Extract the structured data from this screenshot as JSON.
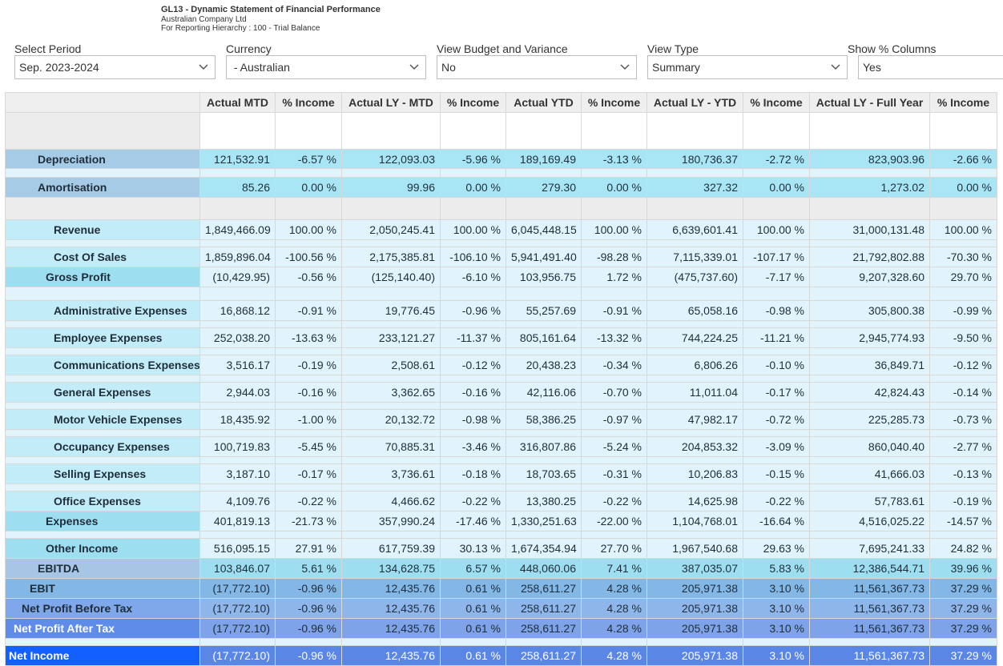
{
  "header": {
    "title": "GL13 - Dynamic Statement of Financial Performance",
    "company": "Australian Company Ltd",
    "hierarchy": "For Reporting Hierarchy : 100 - Trial Balance"
  },
  "filters": [
    {
      "label": "Select Period",
      "value": "Sep. 2023-2024"
    },
    {
      "label": "Currency",
      "value": " - Australian"
    },
    {
      "label": "View Budget and Variance",
      "value": "No"
    },
    {
      "label": "View Type",
      "value": "Summary"
    },
    {
      "label": "Show % Columns",
      "value": "Yes"
    }
  ],
  "columns": [
    "",
    "Actual MTD",
    "% Income",
    "Actual LY - MTD",
    "% Income",
    "Actual YTD",
    "% Income",
    "Actual LY - YTD",
    "% Income",
    "Actual LY - Full Year",
    "% Income"
  ],
  "colors": {
    "label_blue": "#a6cbe6",
    "cell_cyan": "#a9e6f5",
    "light_row": "#e2f4fb",
    "mid_row": "#c2ecf8",
    "gross_row": "#9ddff1",
    "ebitda_label": "#a7c6e6",
    "ebit_bg": "#82b7e6",
    "npbt_bg": "#7fa8ea",
    "npat_bg": "#5e8ce8",
    "net_income_label": "#1460ff",
    "net_income_cells": "#5a86e6"
  },
  "rows": [
    {
      "type": "blank",
      "style": "blank",
      "h": 46
    },
    {
      "type": "data",
      "label": "Depreciation",
      "indent": 40,
      "style": "depr",
      "h": 24,
      "values": [
        "121,532.91",
        "-6.57 %",
        "122,093.03",
        "-5.96 %",
        "189,169.49",
        "-3.13 %",
        "180,736.37",
        "-2.72 %",
        "823,903.96",
        "-2.66 %"
      ]
    },
    {
      "type": "blank",
      "style": "thin",
      "h": 11
    },
    {
      "type": "data",
      "label": "Amortisation",
      "indent": 40,
      "style": "depr",
      "h": 25,
      "values": [
        "85.26",
        "0.00 %",
        "99.96",
        "0.00 %",
        "279.30",
        "0.00 %",
        "327.32",
        "0.00 %",
        "1,273.02",
        "0.00 %"
      ]
    },
    {
      "type": "blank",
      "style": "grey",
      "h": 28
    },
    {
      "type": "data",
      "label": "Revenue",
      "indent": 60,
      "style": "light",
      "h": 25,
      "values": [
        "1,849,466.09",
        "100.00 %",
        "2,050,245.41",
        "100.00 %",
        "6,045,448.15",
        "100.00 %",
        "6,639,601.41",
        "100.00 %",
        "31,000,131.48",
        "100.00 %"
      ]
    },
    {
      "type": "blank",
      "style": "thin",
      "h": 9
    },
    {
      "type": "data",
      "label": "Cost Of Sales",
      "indent": 60,
      "style": "light",
      "h": 25,
      "values": [
        "1,859,896.04",
        "-100.56 %",
        "2,175,385.81",
        "-106.10 %",
        "5,941,491.40",
        "-98.28 %",
        "7,115,339.01",
        "-107.17 %",
        "21,792,802.88",
        "-70.30 %"
      ]
    },
    {
      "type": "data",
      "label": "Gross Profit",
      "indent": 50,
      "style": "gross",
      "h": 25,
      "values": [
        "(10,429.95)",
        "-0.56 %",
        "(125,140.40)",
        "-6.10 %",
        "103,956.75",
        "1.72 %",
        "(475,737.60)",
        "-7.17 %",
        "9,207,328.60",
        "29.70 %"
      ]
    },
    {
      "type": "blank",
      "style": "thin",
      "h": 17
    },
    {
      "type": "data",
      "label": "Administrative Expenses",
      "indent": 60,
      "style": "light",
      "h": 25,
      "values": [
        "16,868.12",
        "-0.91 %",
        "19,776.45",
        "-0.96 %",
        "55,257.69",
        "-0.91 %",
        "65,058.16",
        "-0.98 %",
        "305,800.38",
        "-0.99 %"
      ]
    },
    {
      "type": "blank",
      "style": "thin",
      "h": 9
    },
    {
      "type": "data",
      "label": "Employee Expenses",
      "indent": 60,
      "style": "light",
      "h": 25,
      "values": [
        "252,038.20",
        "-13.63 %",
        "233,121.27",
        "-11.37 %",
        "805,161.64",
        "-13.32 %",
        "744,224.25",
        "-11.21 %",
        "2,945,774.93",
        "-9.50 %"
      ]
    },
    {
      "type": "blank",
      "style": "thin",
      "h": 9
    },
    {
      "type": "data",
      "label": "Communications Expenses",
      "indent": 60,
      "style": "light",
      "h": 25,
      "values": [
        "3,516.17",
        "-0.19 %",
        "2,508.61",
        "-0.12 %",
        "20,438.23",
        "-0.34 %",
        "6,806.26",
        "-0.10 %",
        "36,849.71",
        "-0.12 %"
      ]
    },
    {
      "type": "blank",
      "style": "thin",
      "h": 9
    },
    {
      "type": "data",
      "label": "General Expenses",
      "indent": 60,
      "style": "light",
      "h": 25,
      "values": [
        "2,944.03",
        "-0.16 %",
        "3,362.65",
        "-0.16 %",
        "42,116.06",
        "-0.70 %",
        "11,011.04",
        "-0.17 %",
        "42,824.43",
        "-0.14 %"
      ]
    },
    {
      "type": "blank",
      "style": "thin",
      "h": 9
    },
    {
      "type": "data",
      "label": "Motor Vehicle Expenses",
      "indent": 60,
      "style": "light",
      "h": 25,
      "values": [
        "18,435.92",
        "-1.00 %",
        "20,132.72",
        "-0.98 %",
        "58,386.25",
        "-0.97 %",
        "47,982.17",
        "-0.72 %",
        "225,285.73",
        "-0.73 %"
      ]
    },
    {
      "type": "blank",
      "style": "thin",
      "h": 9
    },
    {
      "type": "data",
      "label": "Occupancy Expenses",
      "indent": 60,
      "style": "light",
      "h": 25,
      "values": [
        "100,719.83",
        "-5.45 %",
        "70,885.31",
        "-3.46 %",
        "316,807.86",
        "-5.24 %",
        "204,853.32",
        "-3.09 %",
        "860,040.40",
        "-2.77 %"
      ]
    },
    {
      "type": "blank",
      "style": "thin",
      "h": 9
    },
    {
      "type": "data",
      "label": "Selling Expenses",
      "indent": 60,
      "style": "light",
      "h": 25,
      "values": [
        "3,187.10",
        "-0.17 %",
        "3,736.61",
        "-0.18 %",
        "18,703.65",
        "-0.31 %",
        "10,206.83",
        "-0.15 %",
        "41,666.03",
        "-0.13 %"
      ]
    },
    {
      "type": "blank",
      "style": "thin",
      "h": 9
    },
    {
      "type": "data",
      "label": "Office Expenses",
      "indent": 60,
      "style": "light",
      "h": 25,
      "values": [
        "4,109.76",
        "-0.22 %",
        "4,466.62",
        "-0.22 %",
        "13,380.25",
        "-0.22 %",
        "14,625.98",
        "-0.22 %",
        "57,783.61",
        "-0.19 %"
      ]
    },
    {
      "type": "data",
      "label": "Expenses",
      "indent": 50,
      "style": "gross",
      "h": 25,
      "values": [
        "401,819.13",
        "-21.73 %",
        "357,990.24",
        "-17.46 %",
        "1,330,251.63",
        "-22.00 %",
        "1,104,768.01",
        "-16.64 %",
        "4,516,025.22",
        "-14.57 %"
      ]
    },
    {
      "type": "blank",
      "style": "thin",
      "h": 9
    },
    {
      "type": "data",
      "label": "Other Income",
      "indent": 50,
      "style": "gross",
      "h": 25,
      "values": [
        "516,095.15",
        "27.91 %",
        "617,759.39",
        "30.13 %",
        "1,674,354.94",
        "27.70 %",
        "1,967,540.68",
        "29.63 %",
        "7,695,241.33",
        "24.82 %"
      ]
    },
    {
      "type": "data",
      "label": "EBITDA",
      "indent": 40,
      "style": "ebitda",
      "h": 25,
      "values": [
        "103,846.07",
        "5.61 %",
        "134,628.75",
        "6.57 %",
        "448,060.06",
        "7.41 %",
        "387,035.07",
        "5.83 %",
        "12,386,544.71",
        "39.96 %"
      ]
    },
    {
      "type": "data",
      "label": "EBIT",
      "indent": 30,
      "style": "ebit",
      "h": 25,
      "values": [
        "(17,772.10)",
        "-0.96 %",
        "12,435.76",
        "0.61 %",
        "258,611.27",
        "4.28 %",
        "205,971.38",
        "3.10 %",
        "11,561,367.73",
        "37.29 %"
      ]
    },
    {
      "type": "data",
      "label": "Net Profit Before Tax",
      "indent": 20,
      "style": "npbt",
      "h": 25,
      "values": [
        "(17,772.10)",
        "-0.96 %",
        "12,435.76",
        "0.61 %",
        "258,611.27",
        "4.28 %",
        "205,971.38",
        "3.10 %",
        "11,561,367.73",
        "37.29 %"
      ]
    },
    {
      "type": "data",
      "label": "Net Profit After Tax",
      "indent": 10,
      "style": "npat",
      "h": 25,
      "values": [
        "(17,772.10)",
        "-0.96 %",
        "12,435.76",
        "0.61 %",
        "258,611.27",
        "4.28 %",
        "205,971.38",
        "3.10 %",
        "11,561,367.73",
        "37.29 %"
      ]
    },
    {
      "type": "blank",
      "style": "thin",
      "h": 9
    },
    {
      "type": "data",
      "label": "Net Income",
      "indent": 4,
      "style": "net",
      "h": 25,
      "values": [
        "(17,772.10)",
        "-0.96 %",
        "12,435.76",
        "0.61 %",
        "258,611.27",
        "4.28 %",
        "205,971.38",
        "3.10 %",
        "11,561,367.73",
        "37.29 %"
      ]
    }
  ]
}
